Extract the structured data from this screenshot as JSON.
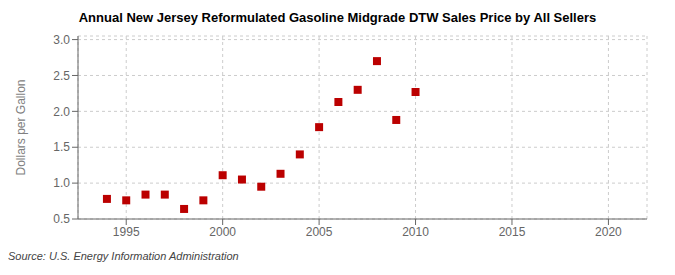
{
  "chart_data": {
    "type": "scatter",
    "title": "Annual New Jersey Reformulated Gasoline Midgrade DTW Sales Price by All Sellers",
    "ylabel": "Dollars per Gallon",
    "annotations": [
      "Source: U.S. Energy Information Administration"
    ],
    "x": [
      1994,
      1995,
      1996,
      1997,
      1998,
      1999,
      2000,
      2001,
      2002,
      2003,
      2004,
      2005,
      2006,
      2007,
      2008,
      2009,
      2010
    ],
    "values": [
      0.78,
      0.76,
      0.84,
      0.84,
      0.64,
      0.76,
      1.11,
      1.05,
      0.95,
      1.13,
      1.4,
      1.78,
      2.13,
      2.3,
      2.7,
      1.88,
      2.27
    ],
    "color": "#bb0000",
    "marker": "square",
    "xlim": [
      1992.5,
      2022
    ],
    "ylim": [
      0.5,
      3.05
    ],
    "xticks": [
      1995,
      2000,
      2005,
      2010,
      2015,
      2020
    ],
    "yticks": [
      0.5,
      {
        "value": 1,
        "label": "1.0"
      },
      1.5,
      {
        "value": 2,
        "label": "2.0"
      },
      2.5,
      {
        "value": 3,
        "label": "3.0"
      }
    ],
    "grid": true
  }
}
